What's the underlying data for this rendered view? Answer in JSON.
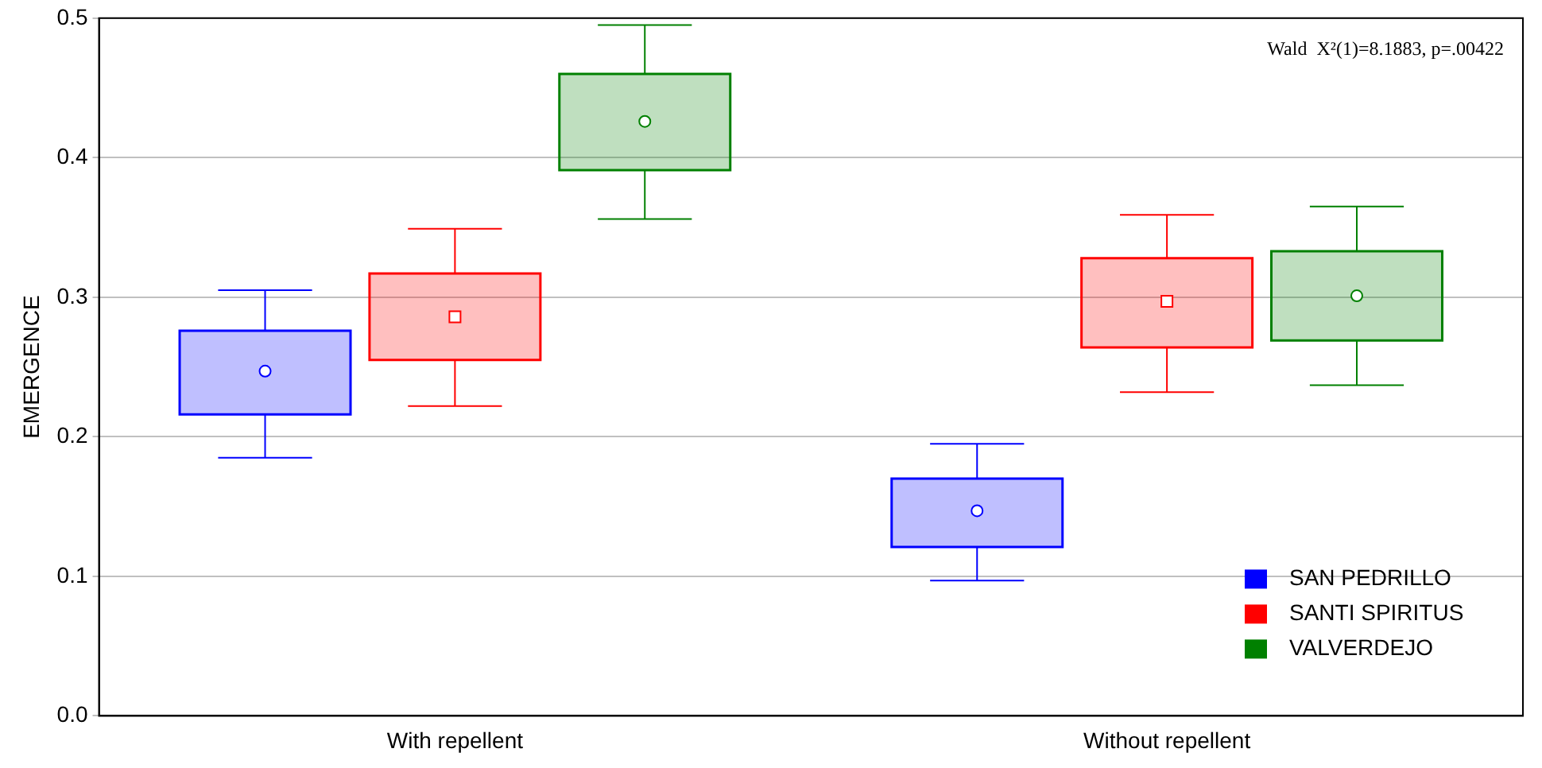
{
  "chart_data": {
    "type": "box",
    "ylabel": "EMERGENCE",
    "categories": [
      "With repellent",
      "Without repellent"
    ],
    "series": [
      {
        "name": "SAN PEDRILLO",
        "color": "#0000ff",
        "boxes": [
          {
            "low": 0.185,
            "q1": 0.216,
            "median": 0.247,
            "q3": 0.276,
            "high": 0.305
          },
          {
            "low": 0.097,
            "q1": 0.121,
            "median": 0.147,
            "q3": 0.17,
            "high": 0.195
          }
        ]
      },
      {
        "name": "SANTI SPIRITUS",
        "color": "#ff0000",
        "boxes": [
          {
            "low": 0.222,
            "q1": 0.255,
            "median": 0.286,
            "q3": 0.317,
            "high": 0.349
          },
          {
            "low": 0.232,
            "q1": 0.264,
            "median": 0.297,
            "q3": 0.328,
            "high": 0.359
          }
        ]
      },
      {
        "name": "VALVERDEJO",
        "color": "#008000",
        "boxes": [
          {
            "low": 0.356,
            "q1": 0.391,
            "median": 0.426,
            "q3": 0.46,
            "high": 0.495
          },
          {
            "low": 0.237,
            "q1": 0.269,
            "median": 0.301,
            "q3": 0.333,
            "high": 0.365
          }
        ]
      }
    ],
    "ylim": [
      0,
      0.5
    ],
    "yticks": [
      {
        "value": 0,
        "label": "0.0"
      },
      {
        "value": 0.1,
        "label": "0.1"
      },
      {
        "value": 0.2,
        "label": "0.2"
      },
      {
        "value": 0.3,
        "label": "0.3"
      },
      {
        "value": 0.4,
        "label": "0.4"
      },
      {
        "value": 0.5,
        "label": "0.5"
      }
    ],
    "grid": "y",
    "legend": "bottom right",
    "annotations": [
      "Wald  X²(1)=8.1883, p=.00422"
    ]
  }
}
